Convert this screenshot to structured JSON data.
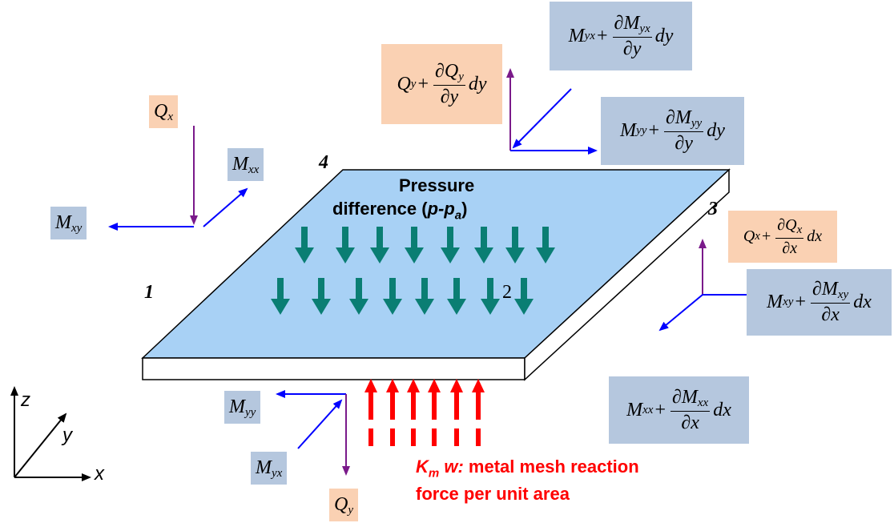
{
  "colors": {
    "plate_top": "#a8d1f5",
    "blue_box": "#b5c7de",
    "orange_box": "#fad1b3",
    "pressure_arrow": "#0a7e73",
    "reaction_arrow": "#ff0000",
    "moment_arrow": "#0000ff",
    "shear_arrow": "#7a1a8a"
  },
  "plate": {
    "corner_1": "1",
    "corner_2": "2",
    "corner_3": "3",
    "corner_4": "4"
  },
  "pressure": {
    "line1": "Pressure",
    "line2_prefix": "difference (",
    "line2_var": "p-p",
    "line2_sub": "a",
    "line2_suffix": ")"
  },
  "reaction": {
    "k": "K",
    "k_sub": "m",
    "w": "w:",
    "line1_rest": " metal mesh reaction",
    "line2": "force per unit area"
  },
  "axes": {
    "z": "z",
    "y": "y",
    "x": "x"
  },
  "labels": {
    "qx_left": {
      "base": "Q",
      "sub": "x"
    },
    "mxx_left": {
      "base": "M",
      "sub": "xx"
    },
    "mxy_left": {
      "base": "M",
      "sub": "xy"
    },
    "myy_bottom": {
      "base": "M",
      "sub": "yy"
    },
    "myx_bottom": {
      "base": "M",
      "sub": "yx"
    },
    "qy_bottom": {
      "base": "Q",
      "sub": "y"
    },
    "qy_top": {
      "base": "Q",
      "sub": "y",
      "plus": "+",
      "num": "∂Q",
      "num_sub": "y",
      "den": "∂y",
      "tail": "dy"
    },
    "myx_top": {
      "base": "M",
      "sub": "yx",
      "plus": "+",
      "num": "∂M",
      "num_sub": "yx",
      "den": "∂y",
      "tail": "dy"
    },
    "myy_top": {
      "base": "M",
      "sub": "yy",
      "plus": "+",
      "num": "∂M",
      "num_sub": "yy",
      "den": "∂y",
      "tail": "dy"
    },
    "qx_right": {
      "base": "Q",
      "sub": "x",
      "plus": "+",
      "num": "∂Q",
      "num_sub": "x",
      "den": "∂x",
      "tail": "dx"
    },
    "mxy_right": {
      "base": "M",
      "sub": "xy",
      "plus": "+",
      "num": "∂M",
      "num_sub": "xy",
      "den": "∂x",
      "tail": "dx"
    },
    "mxx_right": {
      "base": "M",
      "sub": "xx",
      "plus": "+",
      "num": "∂M",
      "num_sub": "xx",
      "den": "∂x",
      "tail": "dx"
    }
  }
}
